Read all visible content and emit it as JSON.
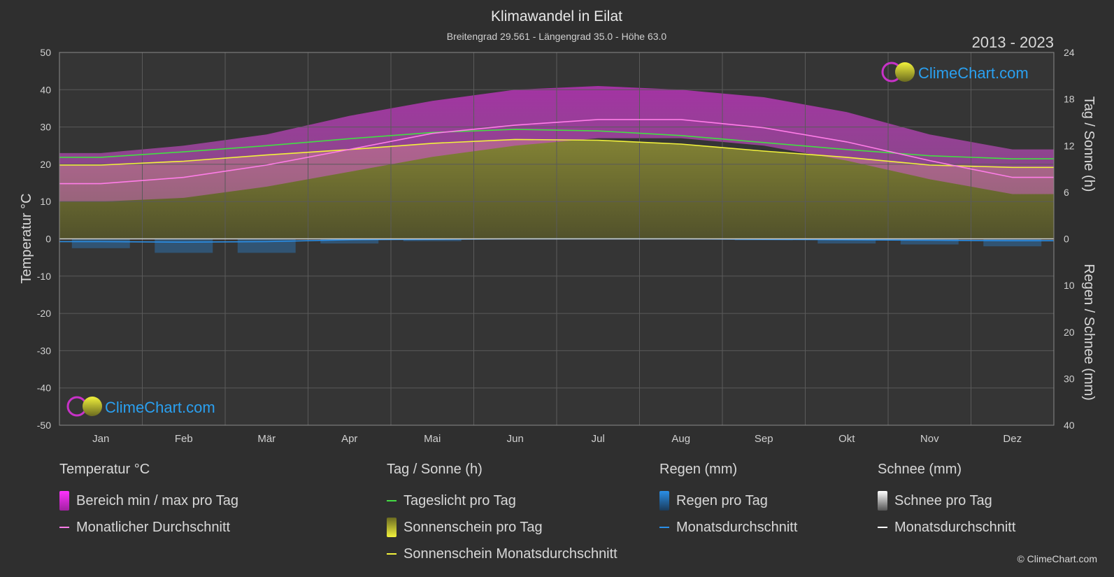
{
  "title": "Klimawandel in Eilat",
  "subtitle": "Breitengrad 29.561 - Längengrad 35.0 - Höhe 63.0",
  "year_range": "2013 - 2023",
  "logo_text": "ClimeChart.com",
  "copyright": "© ClimeChart.com",
  "colors": {
    "background": "#2f2f2f",
    "temp_range": "#c832c8",
    "temp_avg": "#ff7de8",
    "daylight": "#44dd44",
    "sunshine": "#c8c83c",
    "sunshine_avg": "#f2f23c",
    "rain": "#2a8fe8",
    "snow": "#ffffff"
  },
  "chart_data": {
    "type": "area",
    "categories": [
      "Jan",
      "Feb",
      "Mär",
      "Apr",
      "Mai",
      "Jun",
      "Jul",
      "Aug",
      "Sep",
      "Okt",
      "Nov",
      "Dez"
    ],
    "left_axis": {
      "label": "Temperatur °C",
      "range": [
        -50,
        50
      ],
      "ticks": [
        "50",
        "40",
        "30",
        "20",
        "10",
        "0",
        "-10",
        "-20",
        "-30",
        "-40",
        "-50"
      ]
    },
    "right_axis_top": {
      "label": "Tag / Sonne (h)",
      "range": [
        0,
        24
      ],
      "ticks": [
        "24",
        "18",
        "12",
        "6",
        "0"
      ]
    },
    "right_axis_bottom": {
      "label": "Regen / Schnee (mm)",
      "range": [
        0,
        40
      ],
      "ticks": [
        "10",
        "20",
        "30",
        "40"
      ]
    },
    "grid": true,
    "series": [
      {
        "name": "Bereich min / max pro Tag",
        "axis": "temperature",
        "min": [
          10,
          11,
          14,
          18,
          22,
          25,
          27,
          27,
          25,
          21,
          16,
          12
        ],
        "max": [
          23,
          25,
          28,
          33,
          37,
          40,
          41,
          40,
          38,
          34,
          28,
          24
        ]
      },
      {
        "name": "Monatlicher Durchschnitt",
        "axis": "temperature",
        "values": [
          14.8,
          16.5,
          19.8,
          24.0,
          28.3,
          30.5,
          32.0,
          32.0,
          29.8,
          26.0,
          21.0,
          16.5
        ]
      },
      {
        "name": "Tageslicht pro Tag",
        "axis": "hours",
        "values": [
          10.5,
          11.2,
          12.0,
          12.9,
          13.7,
          14.1,
          13.9,
          13.3,
          12.4,
          11.5,
          10.7,
          10.3
        ]
      },
      {
        "name": "Sonnenschein pro Tag",
        "axis": "hours",
        "values": [
          9.5,
          10.0,
          10.8,
          11.5,
          12.3,
          12.8,
          12.7,
          12.2,
          11.3,
          10.5,
          9.5,
          9.2
        ]
      },
      {
        "name": "Sonnenschein Monatsdurchschnitt",
        "axis": "hours",
        "values": [
          9.5,
          10.0,
          10.8,
          11.5,
          12.3,
          12.8,
          12.7,
          12.2,
          11.3,
          10.5,
          9.5,
          9.2
        ]
      },
      {
        "name": "Regen pro Tag",
        "axis": "precipitation",
        "values": [
          2.0,
          3.0,
          3.0,
          1.0,
          0.5,
          0.0,
          0.0,
          0.0,
          0.3,
          1.0,
          1.2,
          1.6
        ]
      },
      {
        "name": "Monatsdurchschnitt",
        "axis": "precipitation",
        "values": [
          0.6,
          0.7,
          0.6,
          0.2,
          0.1,
          0.0,
          0.0,
          0.0,
          0.1,
          0.2,
          0.3,
          0.4
        ]
      }
    ]
  },
  "legend": {
    "temperature": {
      "title": "Temperatur °C",
      "items": [
        "Bereich min / max pro Tag",
        "Monatlicher Durchschnitt"
      ]
    },
    "sun": {
      "title": "Tag / Sonne (h)",
      "items": [
        "Tageslicht pro Tag",
        "Sonnenschein pro Tag",
        "Sonnenschein Monatsdurchschnitt"
      ]
    },
    "rain": {
      "title": "Regen (mm)",
      "items": [
        "Regen pro Tag",
        "Monatsdurchschnitt"
      ]
    },
    "snow": {
      "title": "Schnee (mm)",
      "items": [
        "Schnee pro Tag",
        "Monatsdurchschnitt"
      ]
    }
  }
}
